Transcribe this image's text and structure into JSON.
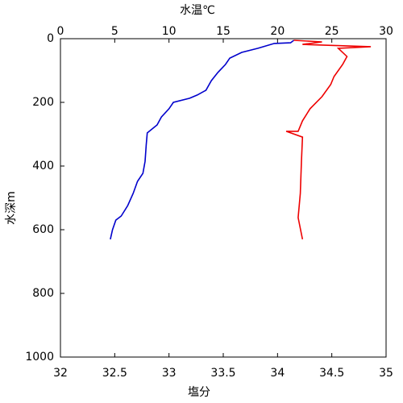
{
  "chart_data": {
    "type": "line",
    "top_label": "水温℃",
    "bottom_label": "塩分",
    "y_label": "水深m",
    "top_label_color": "#0000cc",
    "bottom_label_color": "#cc0000",
    "x2lim": [
      0,
      30
    ],
    "x2ticks": [
      0,
      5,
      10,
      15,
      20,
      25,
      30
    ],
    "xlim": [
      32,
      35
    ],
    "xticks": [
      32,
      32.5,
      33,
      33.5,
      34,
      34.5,
      35
    ],
    "ylim": [
      0,
      1000
    ],
    "yticks": [
      0,
      200,
      400,
      600,
      800,
      1000
    ],
    "y_inverted": true,
    "series": [
      {
        "color": "#0000cc",
        "axis": "x2",
        "x": [
          21.5,
          21.2,
          19.7,
          18.2,
          16.7,
          15.6,
          15.2,
          14.5,
          13.9,
          13.4,
          12.6,
          11.9,
          10.4,
          10.0,
          9.3,
          8.9,
          8.0,
          7.9,
          7.8,
          7.6,
          7.1,
          6.7,
          6.2,
          5.6,
          5.1,
          4.8,
          4.6
        ],
        "y": [
          5,
          13,
          15,
          30,
          43,
          61,
          81,
          106,
          132,
          162,
          177,
          187,
          200,
          220,
          246,
          271,
          296,
          334,
          385,
          423,
          448,
          486,
          524,
          557,
          570,
          600,
          630
        ]
      },
      {
        "color": "#ee0000",
        "axis": "x",
        "x": [
          34.15,
          34.41,
          34.23,
          34.86,
          34.56,
          34.64,
          34.6,
          34.52,
          34.49,
          34.41,
          34.3,
          34.23,
          34.19,
          34.08,
          34.23,
          34.22,
          34.21,
          34.19,
          34.23
        ],
        "y": [
          5,
          10,
          18,
          25,
          30,
          56,
          81,
          119,
          144,
          182,
          220,
          258,
          291,
          291,
          309,
          385,
          486,
          562,
          630
        ]
      }
    ]
  }
}
